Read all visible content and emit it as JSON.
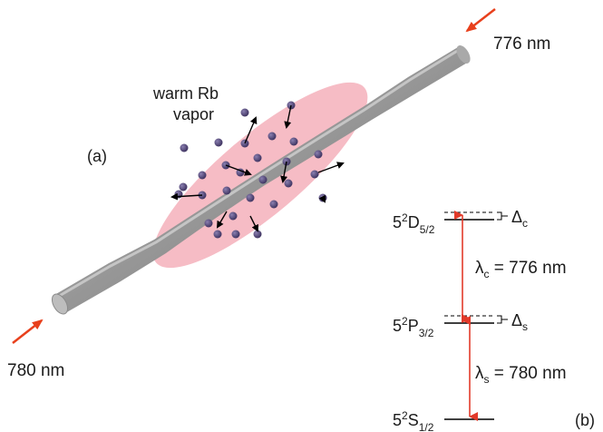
{
  "panel_a": {
    "label": "(a)",
    "vapor_label_line1": "warm Rb",
    "vapor_label_line2": "vapor",
    "input_wavelength": "780 nm",
    "counter_wavelength": "776 nm"
  },
  "panel_b": {
    "label": "(b)",
    "levels": [
      {
        "base": "5",
        "sup": "2",
        "letter": "D",
        "sub": "5/2",
        "detuning_symbol": "Δ",
        "detuning_sub": "c"
      },
      {
        "base": "5",
        "sup": "2",
        "letter": "P",
        "sub": "3/2",
        "detuning_symbol": "Δ",
        "detuning_sub": "s"
      },
      {
        "base": "5",
        "sup": "2",
        "letter": "S",
        "sub": "1/2"
      }
    ],
    "transitions": [
      {
        "symbol": "λ",
        "sub": "c",
        "text": " = 776 nm"
      },
      {
        "symbol": "λ",
        "sub": "s",
        "text": " = 780 nm"
      }
    ]
  },
  "colors": {
    "fiber": "#8f8f8f",
    "fiber_highlight": "#c9c9c9",
    "fiber_end": "#b8b8b8",
    "vapor_glow": "#f6b8c2",
    "atom": "#4a3d6e",
    "arrow": "#e8401c",
    "transition": "#e23a2a",
    "level": "#000000"
  }
}
